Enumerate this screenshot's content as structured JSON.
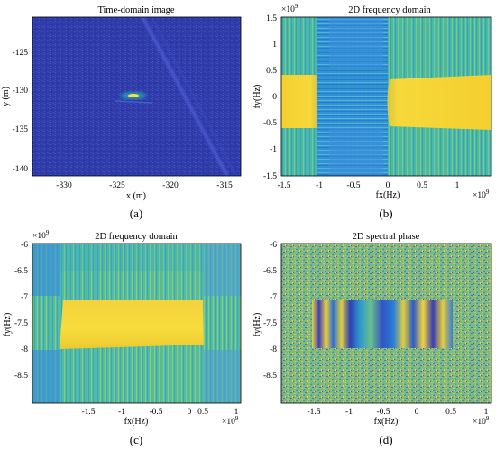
{
  "figure": {
    "panels": [
      {
        "id": "a",
        "caption": "(a)",
        "title": "Time-domain image",
        "xlabel": "x (m)",
        "ylabel": "y (m)",
        "x_ticks": [
          "-330",
          "-325",
          "-320",
          "-315"
        ],
        "y_ticks": [
          "-125",
          "-130",
          "-135",
          "-140"
        ],
        "x_multiplier": "",
        "y_multiplier": ""
      },
      {
        "id": "b",
        "caption": "(b)",
        "title": "2D frequency domain",
        "xlabel": "fx(Hz)",
        "ylabel": "fy(Hz)",
        "x_ticks": [
          "-1.5",
          "-1",
          "-0.5",
          "0",
          "0.5",
          "1"
        ],
        "y_ticks": [
          "1.5",
          "1",
          "0.5",
          "0",
          "-0.5",
          "-1",
          "-1.5"
        ],
        "x_multiplier": "×10",
        "x_multiplier_exp": "9",
        "y_multiplier": "×10",
        "y_multiplier_exp": "9"
      },
      {
        "id": "c",
        "caption": "(c)",
        "title": "2D frequency domain",
        "xlabel": "fx(Hz)",
        "ylabel": "fy(Hz)",
        "x_ticks": [
          "-1.5",
          "-1",
          "-0.5",
          "0",
          "0.5",
          "1"
        ],
        "y_ticks": [
          "-6",
          "-6.5",
          "-7",
          "-7.5",
          "-8",
          "-8.5"
        ],
        "x_multiplier": "×10",
        "x_multiplier_exp": "9",
        "y_multiplier": "×10",
        "y_multiplier_exp": "9"
      },
      {
        "id": "d",
        "caption": "(d)",
        "title": "2D spectral phase",
        "xlabel": "fx(Hz)",
        "ylabel": "fy(Hz)",
        "x_ticks": [
          "-1.5",
          "-1",
          "-0.5",
          "0",
          "0.5",
          "1"
        ],
        "y_ticks": [
          "-6",
          "-6.5",
          "-7",
          "-7.5",
          "-8",
          "-8.5"
        ],
        "x_multiplier": "×10",
        "x_multiplier_exp": "9",
        "y_multiplier": "×10",
        "y_multiplier_exp": "9"
      }
    ]
  },
  "chart_data": [
    {
      "type": "heatmap",
      "title": "Time-domain image",
      "xlabel": "x (m)",
      "ylabel": "y (m)",
      "xlim": [
        -334,
        -314
      ],
      "ylim": [
        -141.5,
        -119
      ],
      "colormap": "parula",
      "features": [
        {
          "kind": "point-target",
          "x": -324,
          "y": -130.7,
          "intensity": "high"
        },
        {
          "kind": "diagonal-streak",
          "from": [
            -327,
            -120
          ],
          "to": [
            -315,
            -141
          ],
          "intensity": "low"
        }
      ]
    },
    {
      "type": "heatmap",
      "title": "2D frequency domain",
      "xlabel": "fx(Hz)",
      "ylabel": "fy(Hz)",
      "xlim": [
        -1.5,
        1.5
      ],
      "ylim": [
        -1.5,
        1.5
      ],
      "unit_scale": "1e9",
      "colormap": "parula",
      "high_regions": [
        {
          "x": [
            -1.5,
            -0.95
          ],
          "y": [
            -0.5,
            0.5
          ]
        },
        {
          "x": [
            -0.05,
            1.5
          ],
          "y": [
            -0.5,
            0.5
          ]
        }
      ]
    },
    {
      "type": "heatmap",
      "title": "2D frequency domain",
      "xlabel": "fx(Hz)",
      "ylabel": "fy(Hz)",
      "xlim": [
        -2,
        1.05
      ],
      "ylim": [
        -9,
        -6
      ],
      "unit_scale": "1e9",
      "colormap": "parula",
      "high_regions": [
        {
          "x": [
            -1.5,
            0.5
          ],
          "y": [
            -8.0,
            -7.1
          ]
        }
      ]
    },
    {
      "type": "heatmap",
      "title": "2D spectral phase",
      "xlabel": "fx(Hz)",
      "ylabel": "fy(Hz)",
      "xlim": [
        -2,
        1.05
      ],
      "ylim": [
        -9,
        -6
      ],
      "unit_scale": "1e9",
      "colormap": "parula",
      "structured_region": {
        "x": [
          -1.5,
          0.5
        ],
        "y": [
          -8.0,
          -7.1
        ],
        "pattern": "vertical phase fringes"
      }
    }
  ]
}
